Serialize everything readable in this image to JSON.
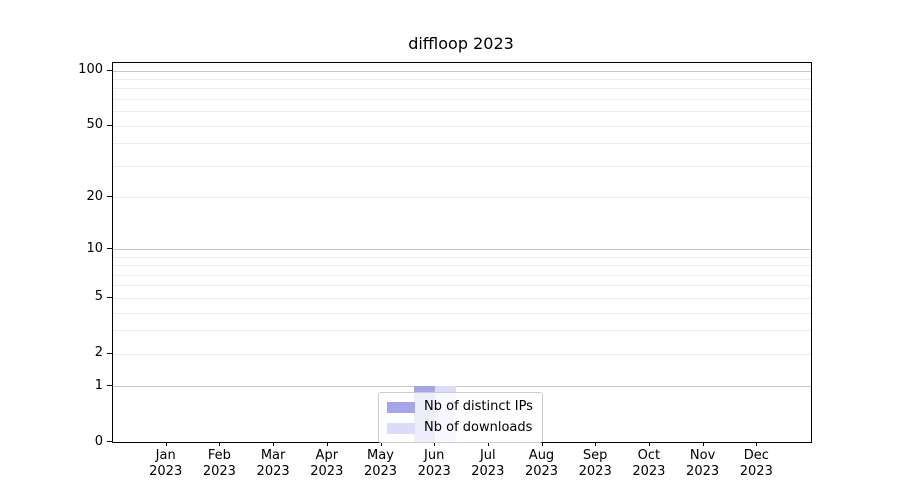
{
  "chart_data": {
    "type": "bar",
    "title": "diffloop 2023",
    "categories": [
      "Jan",
      "Feb",
      "Mar",
      "Apr",
      "May",
      "Jun",
      "Jul",
      "Aug",
      "Sep",
      "Oct",
      "Nov",
      "Dec"
    ],
    "x_year_label": "2023",
    "series": [
      {
        "name": "Nb of distinct IPs",
        "color": "#a5a5ec",
        "values": [
          0,
          0,
          0,
          0,
          0,
          1,
          0,
          0,
          0,
          0,
          0,
          0
        ]
      },
      {
        "name": "Nb of downloads",
        "color": "#dcdcf8",
        "values": [
          0,
          0,
          0,
          0,
          0,
          1,
          0,
          0,
          0,
          0,
          0,
          0
        ]
      }
    ],
    "yticks": [
      0,
      1,
      2,
      5,
      10,
      20,
      50,
      100
    ],
    "major_gridlines": [
      1,
      10,
      100
    ],
    "minor_gridlines": [
      2,
      3,
      4,
      5,
      6,
      7,
      8,
      9,
      20,
      30,
      40,
      50,
      60,
      70,
      80,
      90
    ],
    "scale": "log1p",
    "ylim": [
      0,
      110
    ],
    "grid": true,
    "legend_position": "lower center",
    "colors": {
      "major_grid": "#c6c6c6",
      "minor_grid": "#ebebeb",
      "spine": "#000000",
      "text": "#000000",
      "legend_border": "#cccccc"
    }
  }
}
